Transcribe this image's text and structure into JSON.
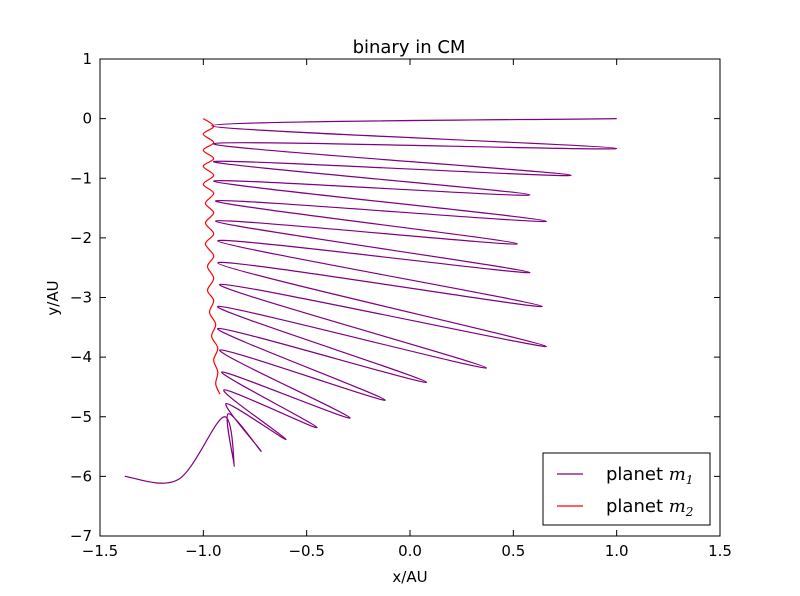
{
  "chart_data": {
    "type": "line",
    "title": "binary in CM",
    "xlabel": "x/AU",
    "ylabel": "y/AU",
    "xlim": [
      -1.5,
      1.5
    ],
    "ylim": [
      -7,
      1
    ],
    "xticks": [
      -1.5,
      -1.0,
      -0.5,
      0.0,
      0.5,
      1.0,
      1.5
    ],
    "xtick_labels": [
      "−1.5",
      "−1.0",
      "−0.5",
      "0.0",
      "0.5",
      "1.0",
      "1.5"
    ],
    "yticks": [
      1,
      0,
      -1,
      -2,
      -3,
      -4,
      -5,
      -6,
      -7
    ],
    "ytick_labels": [
      "1",
      "0",
      "−1",
      "−2",
      "−3",
      "−4",
      "−5",
      "−6",
      "−7"
    ],
    "grid": false,
    "legend_position": "lower-right",
    "series": [
      {
        "name": "planet m1",
        "legend_text": "planet ",
        "legend_var": "m",
        "legend_sub": "1",
        "color": "#800080",
        "tips": [
          [
            1.0,
            0.0
          ],
          [
            1.0,
            -0.5
          ],
          [
            0.78,
            -0.95
          ],
          [
            0.58,
            -1.28
          ],
          [
            0.66,
            -1.72
          ],
          [
            0.52,
            -2.1
          ],
          [
            0.58,
            -2.58
          ],
          [
            0.64,
            -3.15
          ],
          [
            0.66,
            -3.82
          ],
          [
            0.37,
            -4.18
          ],
          [
            0.08,
            -4.42
          ],
          [
            -0.12,
            -4.72
          ],
          [
            -0.29,
            -5.02
          ],
          [
            -0.45,
            -5.18
          ],
          [
            -0.6,
            -5.38
          ],
          [
            -0.72,
            -5.58
          ],
          [
            -0.85,
            -5.83
          ],
          [
            -1.12,
            -6.05
          ]
        ],
        "returns": [
          [
            -0.96,
            -0.12
          ],
          [
            -0.95,
            -0.42
          ],
          [
            -0.95,
            -0.72
          ],
          [
            -0.95,
            -1.05
          ],
          [
            -0.94,
            -1.38
          ],
          [
            -0.94,
            -1.72
          ],
          [
            -0.93,
            -2.05
          ],
          [
            -0.93,
            -2.42
          ],
          [
            -0.92,
            -2.78
          ],
          [
            -0.93,
            -3.15
          ],
          [
            -0.93,
            -3.52
          ],
          [
            -0.92,
            -3.88
          ],
          [
            -0.91,
            -4.25
          ],
          [
            -0.9,
            -4.55
          ],
          [
            -0.89,
            -4.78
          ],
          [
            -0.88,
            -4.95
          ],
          [
            -0.9,
            -5.0
          ]
        ],
        "end": [
          -1.38,
          -6.0
        ]
      },
      {
        "name": "planet m2",
        "legend_text": "planet ",
        "legend_var": "m",
        "legend_sub": "2",
        "color": "#ff0000",
        "points": [
          [
            -1.0,
            0.0
          ],
          [
            -0.95,
            -0.13
          ],
          [
            -1.0,
            -0.26
          ],
          [
            -0.95,
            -0.4
          ],
          [
            -1.0,
            -0.53
          ],
          [
            -0.95,
            -0.67
          ],
          [
            -1.0,
            -0.8
          ],
          [
            -0.95,
            -0.95
          ],
          [
            -1.0,
            -1.1
          ],
          [
            -0.95,
            -1.25
          ],
          [
            -0.99,
            -1.42
          ],
          [
            -0.95,
            -1.58
          ],
          [
            -0.99,
            -1.75
          ],
          [
            -0.95,
            -1.93
          ],
          [
            -0.99,
            -2.1
          ],
          [
            -0.95,
            -2.3
          ],
          [
            -0.98,
            -2.48
          ],
          [
            -0.95,
            -2.68
          ],
          [
            -0.98,
            -2.88
          ],
          [
            -0.95,
            -3.05
          ],
          [
            -0.97,
            -3.25
          ],
          [
            -0.94,
            -3.45
          ],
          [
            -0.96,
            -3.65
          ],
          [
            -0.93,
            -3.85
          ],
          [
            -0.95,
            -4.05
          ],
          [
            -0.93,
            -4.25
          ],
          [
            -0.94,
            -4.45
          ],
          [
            -0.92,
            -4.62
          ]
        ]
      }
    ]
  }
}
